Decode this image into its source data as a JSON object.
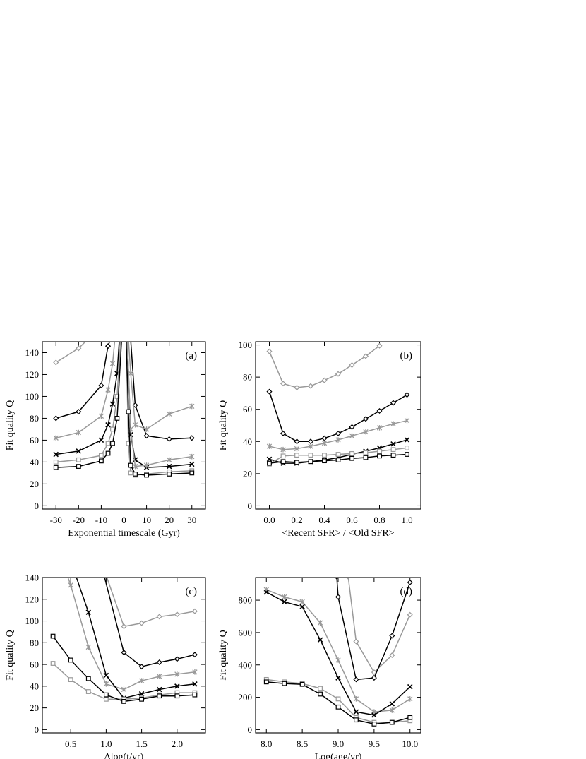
{
  "chart_data": [
    {
      "type": "line",
      "panel_label": "(a)",
      "xlabel": "Exponential timescale (Gyr)",
      "ylabel": "Fit quality Q",
      "xlim": [
        -36,
        36
      ],
      "ylim": [
        -3,
        150
      ],
      "xticks": [
        -30,
        -20,
        -10,
        0,
        10,
        20,
        30
      ],
      "yticks": [
        0,
        20,
        40,
        60,
        80,
        100,
        120,
        140
      ],
      "grid": false,
      "legend": "none",
      "series": [
        {
          "color": "#999999",
          "marker": "diamond",
          "x": [
            -30,
            -20,
            -16
          ],
          "y": [
            131,
            144,
            152
          ]
        },
        {
          "color": "#000000",
          "marker": "diamond",
          "x": [
            -30,
            -20,
            -10,
            -7,
            -6
          ],
          "y": [
            80,
            86,
            110,
            146,
            152
          ]
        },
        {
          "color": "#999999",
          "marker": "star",
          "x": [
            -30,
            -20,
            -10,
            -7,
            -5,
            -4
          ],
          "y": [
            62,
            67,
            82,
            106,
            130,
            152
          ]
        },
        {
          "color": "#000000",
          "marker": "cross",
          "x": [
            -30,
            -20,
            -10,
            -7,
            -5,
            -3,
            -2
          ],
          "y": [
            47,
            50,
            60,
            74,
            93,
            121,
            152
          ]
        },
        {
          "color": "#999999",
          "marker": "square",
          "x": [
            -30,
            -20,
            -10,
            -7,
            -5,
            -3,
            -1.5
          ],
          "y": [
            40,
            42,
            46,
            57,
            70,
            100,
            152
          ]
        },
        {
          "color": "#000000",
          "marker": "square",
          "x": [
            -30,
            -20,
            -10,
            -7,
            -5,
            -3,
            -1
          ],
          "y": [
            35,
            36,
            41,
            48,
            57,
            80,
            152
          ]
        },
        {
          "color": "#000000",
          "marker": "diamond",
          "x": [
            3,
            5,
            10,
            20,
            30
          ],
          "y": [
            152,
            92,
            64,
            61,
            62
          ]
        },
        {
          "color": "#999999",
          "marker": "star",
          "x": [
            2,
            3,
            5,
            10,
            20,
            30
          ],
          "y": [
            152,
            121,
            74,
            70,
            84,
            91
          ]
        },
        {
          "color": "#000000",
          "marker": "cross",
          "x": [
            1.5,
            3,
            5,
            10,
            20,
            30
          ],
          "y": [
            152,
            65,
            42,
            35,
            36,
            38
          ]
        },
        {
          "color": "#999999",
          "marker": "star",
          "x": [
            1.5,
            3,
            5,
            10,
            20,
            30
          ],
          "y": [
            152,
            70,
            36,
            37,
            42,
            45
          ]
        },
        {
          "color": "#999999",
          "marker": "square",
          "x": [
            1,
            2,
            3,
            5,
            10,
            20,
            30
          ],
          "y": [
            152,
            57,
            30,
            28,
            29,
            31,
            32
          ]
        },
        {
          "color": "#000000",
          "marker": "square",
          "x": [
            1,
            2,
            3,
            5,
            10,
            20,
            30
          ],
          "y": [
            152,
            86,
            37,
            29,
            28,
            29,
            30
          ]
        }
      ]
    },
    {
      "type": "line",
      "panel_label": "(b)",
      "xlabel": "<Recent SFR> / <Old SFR>",
      "ylabel": "Fit quality Q",
      "xlim": [
        -0.1,
        1.1
      ],
      "ylim": [
        -2,
        102
      ],
      "xticks": [
        0.0,
        0.2,
        0.4,
        0.6,
        0.8,
        1.0
      ],
      "yticks": [
        0,
        20,
        40,
        60,
        80,
        100
      ],
      "grid": false,
      "legend": "none",
      "series": [
        {
          "color": "#999999",
          "marker": "diamond",
          "x": [
            0.0,
            0.1,
            0.2,
            0.3,
            0.4,
            0.5,
            0.6,
            0.7,
            0.8
          ],
          "y": [
            96,
            76,
            73.5,
            74.5,
            78,
            82,
            87.5,
            93,
            99.5
          ]
        },
        {
          "color": "#000000",
          "marker": "diamond",
          "x": [
            0.0,
            0.1,
            0.2,
            0.3,
            0.4,
            0.5,
            0.6,
            0.7,
            0.8,
            0.9,
            1.0
          ],
          "y": [
            71,
            45,
            40,
            40,
            42,
            45,
            49,
            54,
            59,
            64,
            69
          ]
        },
        {
          "color": "#999999",
          "marker": "star",
          "x": [
            0.0,
            0.1,
            0.2,
            0.3,
            0.4,
            0.5,
            0.6,
            0.7,
            0.8,
            0.9,
            1.0
          ],
          "y": [
            37,
            35,
            35.5,
            37,
            39,
            41,
            43.5,
            46,
            48.5,
            51,
            53
          ]
        },
        {
          "color": "#000000",
          "marker": "cross",
          "x": [
            0.0,
            0.1,
            0.2,
            0.3,
            0.4,
            0.5,
            0.6,
            0.7,
            0.8,
            0.9,
            1.0
          ],
          "y": [
            29,
            26.5,
            26.5,
            27.5,
            28.5,
            30,
            32,
            34,
            36,
            38.5,
            41
          ]
        },
        {
          "color": "#999999",
          "marker": "square",
          "x": [
            0.0,
            0.1,
            0.2,
            0.3,
            0.4,
            0.5,
            0.6,
            0.7,
            0.8,
            0.9,
            1.0
          ],
          "y": [
            26,
            31,
            31.5,
            31.5,
            31.5,
            32,
            32.5,
            33,
            34,
            35,
            36
          ]
        },
        {
          "color": "#000000",
          "marker": "square",
          "x": [
            0.0,
            0.1,
            0.2,
            0.3,
            0.4,
            0.5,
            0.6,
            0.7,
            0.8,
            0.9,
            1.0
          ],
          "y": [
            26.5,
            27.5,
            27,
            27.5,
            28,
            28.5,
            29.5,
            30,
            31,
            31.5,
            32
          ]
        }
      ]
    },
    {
      "type": "line",
      "panel_label": "(c)",
      "xlabel": "Δlog(t/yr)",
      "ylabel": "Fit quality Q",
      "xlim": [
        0.1,
        2.4
      ],
      "ylim": [
        -3,
        140
      ],
      "xticks": [
        0.5,
        1.0,
        1.5,
        2.0
      ],
      "yticks": [
        0,
        20,
        40,
        60,
        80,
        100,
        120,
        140
      ],
      "grid": false,
      "legend": "none",
      "series": [
        {
          "color": "#999999",
          "marker": "diamond",
          "x": [
            1.0,
            1.25,
            1.5,
            1.75,
            2.0,
            2.25
          ],
          "y": [
            142,
            95,
            98,
            104,
            106,
            109
          ]
        },
        {
          "color": "#000000",
          "marker": "diamond",
          "x": [
            0.97,
            1.25,
            1.5,
            1.75,
            2.0,
            2.25
          ],
          "y": [
            142,
            71,
            58,
            62,
            65,
            69
          ]
        },
        {
          "color": "#999999",
          "marker": "star",
          "x": [
            0.45,
            0.5,
            0.75,
            1.0,
            1.25,
            1.5,
            1.75,
            2.0,
            2.25
          ],
          "y": [
            142,
            133,
            76,
            42,
            37,
            45,
            49,
            51,
            53
          ]
        },
        {
          "color": "#000000",
          "marker": "cross",
          "x": [
            0.57,
            0.75,
            1.0,
            1.25,
            1.5,
            1.75,
            2.0,
            2.25
          ],
          "y": [
            142,
            108,
            50,
            29,
            33,
            37,
            40,
            42
          ]
        },
        {
          "color": "#999999",
          "marker": "square",
          "x": [
            0.25,
            0.5,
            0.75,
            1.0,
            1.25,
            1.5,
            1.75,
            2.0,
            2.25
          ],
          "y": [
            61,
            46,
            35,
            28,
            28,
            29,
            32,
            34,
            34
          ]
        },
        {
          "color": "#000000",
          "marker": "square",
          "x": [
            0.25,
            0.5,
            0.75,
            1.0,
            1.25,
            1.5,
            1.75,
            2.0,
            2.25
          ],
          "y": [
            86,
            64,
            47,
            32,
            26,
            28,
            31,
            31,
            32
          ]
        }
      ]
    },
    {
      "type": "line",
      "panel_label": "(d)",
      "xlabel": "Log(age/yr)",
      "ylabel": "Fit quality Q",
      "xlim": [
        7.85,
        10.15
      ],
      "ylim": [
        -20,
        940
      ],
      "xticks": [
        8.0,
        8.5,
        9.0,
        9.5,
        10.0
      ],
      "yticks": [
        0,
        200,
        400,
        600,
        800
      ],
      "grid": false,
      "legend": "none",
      "series": [
        {
          "color": "#999999",
          "marker": "star",
          "x": [
            8.0,
            8.25,
            8.5,
            8.75,
            9.0,
            9.25,
            9.5,
            9.75,
            10.0
          ],
          "y": [
            865,
            820,
            790,
            660,
            430,
            190,
            110,
            120,
            190
          ]
        },
        {
          "color": "#000000",
          "marker": "cross",
          "x": [
            8.0,
            8.25,
            8.5,
            8.75,
            9.0,
            9.25,
            9.5,
            9.75,
            10.0
          ],
          "y": [
            850,
            790,
            760,
            555,
            320,
            110,
            90,
            160,
            265
          ]
        },
        {
          "color": "#999999",
          "marker": "diamond",
          "x": [
            9.14,
            9.25,
            9.5,
            9.75,
            10.0
          ],
          "y": [
            945,
            545,
            355,
            460,
            710
          ]
        },
        {
          "color": "#000000",
          "marker": "diamond",
          "x": [
            8.98,
            9.0,
            9.25,
            9.5,
            9.75,
            10.0
          ],
          "y": [
            945,
            820,
            310,
            320,
            580,
            910
          ]
        },
        {
          "color": "#999999",
          "marker": "square",
          "x": [
            8.0,
            8.25,
            8.5,
            8.75,
            9.0,
            9.25,
            9.5,
            9.75,
            10.0
          ],
          "y": [
            310,
            295,
            285,
            255,
            190,
            75,
            45,
            45,
            55
          ]
        },
        {
          "color": "#000000",
          "marker": "square",
          "x": [
            8.0,
            8.25,
            8.5,
            8.75,
            9.0,
            9.25,
            9.5,
            9.75,
            10.0
          ],
          "y": [
            295,
            285,
            280,
            220,
            140,
            60,
            35,
            45,
            75
          ]
        }
      ]
    }
  ]
}
